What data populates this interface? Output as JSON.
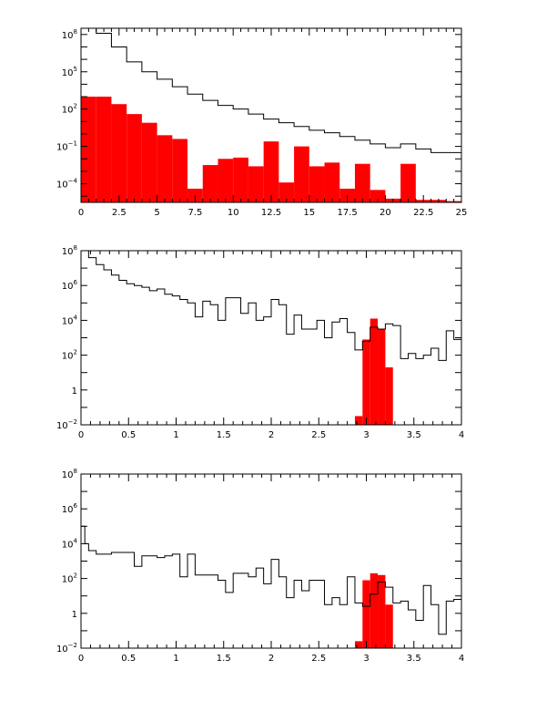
{
  "colors": {
    "background": "#ffffff",
    "axis": "#000000",
    "outline_series": "#000000",
    "filled_series": "#ff0000"
  },
  "chart_data": [
    {
      "id": "top",
      "type": "area",
      "yscale": "log",
      "xlim": [
        0,
        25
      ],
      "ylim_log10": [
        -5.5,
        8.5
      ],
      "xticks": [
        {
          "v": 0,
          "t": "0"
        },
        {
          "v": 2.5,
          "t": "2.5"
        },
        {
          "v": 5,
          "t": "5"
        },
        {
          "v": 7.5,
          "t": "7.5"
        },
        {
          "v": 10,
          "t": "10"
        },
        {
          "v": 12.5,
          "t": "12.5"
        },
        {
          "v": 15,
          "t": "15"
        },
        {
          "v": 17.5,
          "t": "17.5"
        },
        {
          "v": 20,
          "t": "20"
        },
        {
          "v": 22.5,
          "t": "22.5"
        },
        {
          "v": 25,
          "t": "25"
        }
      ],
      "yticks": [
        {
          "e": 8,
          "base": "10",
          "exp": "8"
        },
        {
          "e": 5,
          "base": "10",
          "exp": "5"
        },
        {
          "e": 2,
          "base": "10",
          "exp": "2"
        },
        {
          "e": -1,
          "base": "10",
          "exp": "−1"
        },
        {
          "e": -4,
          "base": "10",
          "exp": "−4"
        }
      ],
      "bin_edges": [
        0,
        1,
        2,
        3,
        4,
        5,
        6,
        7,
        8,
        9,
        10,
        11,
        12,
        13,
        14,
        15,
        16,
        17,
        18,
        19,
        20,
        21,
        22,
        23,
        24,
        25
      ],
      "series": [
        {
          "style": "outline",
          "values_log10": [
            8.5,
            8.1,
            7.0,
            5.8,
            5.0,
            4.4,
            3.8,
            3.2,
            2.7,
            2.3,
            2.0,
            1.6,
            1.2,
            0.9,
            0.6,
            0.3,
            0.1,
            -0.2,
            -0.5,
            -0.8,
            -1.1,
            -0.8,
            -1.2,
            -1.5,
            -1.5
          ]
        },
        {
          "style": "filled",
          "values_log10": [
            3.0,
            3.0,
            2.4,
            1.6,
            0.9,
            -0.1,
            -0.4,
            -4.4,
            -2.5,
            -2.0,
            -1.9,
            -2.6,
            -0.6,
            -3.9,
            -1.0,
            -2.6,
            -2.3,
            -4.4,
            -2.4,
            -4.5,
            -5.2,
            -2.4,
            -5.3,
            -5.3,
            -5.4
          ]
        }
      ]
    },
    {
      "id": "middle",
      "type": "area",
      "yscale": "log",
      "xlim": [
        0,
        4
      ],
      "ylim_log10": [
        -2,
        8
      ],
      "xticks": [
        {
          "v": 0,
          "t": "0"
        },
        {
          "v": 0.5,
          "t": "0.5"
        },
        {
          "v": 1,
          "t": "1"
        },
        {
          "v": 1.5,
          "t": "1.5"
        },
        {
          "v": 2,
          "t": "2"
        },
        {
          "v": 2.5,
          "t": "2.5"
        },
        {
          "v": 3,
          "t": "3"
        },
        {
          "v": 3.5,
          "t": "3.5"
        },
        {
          "v": 4,
          "t": "4"
        }
      ],
      "yticks": [
        {
          "e": 8,
          "base": "10",
          "exp": "8"
        },
        {
          "e": 6,
          "base": "10",
          "exp": "6"
        },
        {
          "e": 4,
          "base": "10",
          "exp": "4"
        },
        {
          "e": 2,
          "base": "10",
          "exp": "2"
        },
        {
          "e": 0,
          "base": "1",
          "exp": ""
        },
        {
          "e": -2,
          "base": "10",
          "exp": "−2"
        }
      ],
      "bin_edges": [
        0,
        0.08,
        0.16,
        0.24,
        0.32,
        0.4,
        0.48,
        0.56,
        0.64,
        0.72,
        0.8,
        0.88,
        0.96,
        1.04,
        1.12,
        1.2,
        1.28,
        1.36,
        1.44,
        1.52,
        1.6,
        1.68,
        1.76,
        1.84,
        1.92,
        2.0,
        2.08,
        2.16,
        2.24,
        2.32,
        2.4,
        2.48,
        2.56,
        2.64,
        2.72,
        2.8,
        2.88,
        2.96,
        3.04,
        3.12,
        3.2,
        3.28,
        3.36,
        3.44,
        3.52,
        3.6,
        3.68,
        3.76,
        3.84,
        3.92,
        4.0
      ],
      "series": [
        {
          "style": "outline",
          "values_log10": [
            8.0,
            7.6,
            7.2,
            6.9,
            6.6,
            6.3,
            6.1,
            6.0,
            5.9,
            5.7,
            5.8,
            5.5,
            5.4,
            5.2,
            5.0,
            4.2,
            5.1,
            4.9,
            4.0,
            5.3,
            5.3,
            4.4,
            5.0,
            4.0,
            4.2,
            5.2,
            4.9,
            3.2,
            4.3,
            3.5,
            3.5,
            4.0,
            3.0,
            3.9,
            4.1,
            3.3,
            2.3,
            2.8,
            3.6,
            3.5,
            3.8,
            3.7,
            1.8,
            2.1,
            1.8,
            2.0,
            2.4,
            1.7,
            3.4,
            2.9
          ]
        },
        {
          "style": "filled",
          "values_log10": [
            null,
            null,
            null,
            null,
            null,
            null,
            null,
            null,
            null,
            null,
            null,
            null,
            null,
            null,
            null,
            null,
            null,
            null,
            null,
            null,
            null,
            null,
            null,
            null,
            null,
            null,
            null,
            null,
            null,
            null,
            null,
            null,
            null,
            null,
            null,
            null,
            -1.5,
            2.9,
            4.1,
            3.5,
            1.3,
            null,
            null,
            null,
            null,
            null,
            null,
            null,
            null,
            null
          ]
        }
      ]
    },
    {
      "id": "bottom",
      "type": "area",
      "yscale": "log",
      "xlim": [
        0,
        4
      ],
      "ylim_log10": [
        -2,
        8
      ],
      "xticks": [
        {
          "v": 0,
          "t": "0"
        },
        {
          "v": 0.5,
          "t": "0.5"
        },
        {
          "v": 1,
          "t": "1"
        },
        {
          "v": 1.5,
          "t": "1.5"
        },
        {
          "v": 2,
          "t": "2"
        },
        {
          "v": 2.5,
          "t": "2.5"
        },
        {
          "v": 3,
          "t": "3"
        },
        {
          "v": 3.5,
          "t": "3.5"
        },
        {
          "v": 4,
          "t": "4"
        }
      ],
      "yticks": [
        {
          "e": 8,
          "base": "10",
          "exp": "8"
        },
        {
          "e": 6,
          "base": "10",
          "exp": "6"
        },
        {
          "e": 4,
          "base": "10",
          "exp": "4"
        },
        {
          "e": 2,
          "base": "10",
          "exp": "2"
        },
        {
          "e": 0,
          "base": "1",
          "exp": ""
        },
        {
          "e": -2,
          "base": "10",
          "exp": "−2"
        }
      ],
      "bin_edges": [
        0,
        0.04,
        0.08,
        0.16,
        0.24,
        0.32,
        0.4,
        0.48,
        0.56,
        0.64,
        0.72,
        0.8,
        0.88,
        0.96,
        1.04,
        1.12,
        1.2,
        1.28,
        1.36,
        1.44,
        1.52,
        1.6,
        1.68,
        1.76,
        1.84,
        1.92,
        2.0,
        2.08,
        2.16,
        2.24,
        2.32,
        2.4,
        2.48,
        2.56,
        2.64,
        2.72,
        2.8,
        2.88,
        2.96,
        3.04,
        3.12,
        3.2,
        3.28,
        3.36,
        3.44,
        3.52,
        3.6,
        3.68,
        3.76,
        3.84,
        3.92,
        4.0
      ],
      "series": [
        {
          "style": "outline",
          "values_log10": [
            5.0,
            4.0,
            3.6,
            3.4,
            3.4,
            3.5,
            3.5,
            3.5,
            2.7,
            3.3,
            3.3,
            3.2,
            3.3,
            3.4,
            2.1,
            3.4,
            2.2,
            2.2,
            2.2,
            1.9,
            1.2,
            2.3,
            2.3,
            2.1,
            2.6,
            1.7,
            3.1,
            2.1,
            0.9,
            1.9,
            1.3,
            1.9,
            1.9,
            0.5,
            0.9,
            0.5,
            2.1,
            0.6,
            0.4,
            1.1,
            1.8,
            1.5,
            0.6,
            0.7,
            0.2,
            -0.4,
            1.6,
            0.5,
            -1.2,
            0.7,
            0.8
          ]
        },
        {
          "style": "filled",
          "values_log10": [
            null,
            null,
            null,
            null,
            null,
            null,
            null,
            null,
            null,
            null,
            null,
            null,
            null,
            null,
            null,
            null,
            null,
            null,
            null,
            null,
            null,
            null,
            null,
            null,
            null,
            null,
            null,
            null,
            null,
            null,
            null,
            null,
            null,
            null,
            null,
            null,
            null,
            -1.6,
            1.9,
            2.3,
            2.2,
            0.5,
            null,
            null,
            null,
            null,
            null,
            null,
            null,
            null,
            null
          ]
        }
      ]
    }
  ]
}
